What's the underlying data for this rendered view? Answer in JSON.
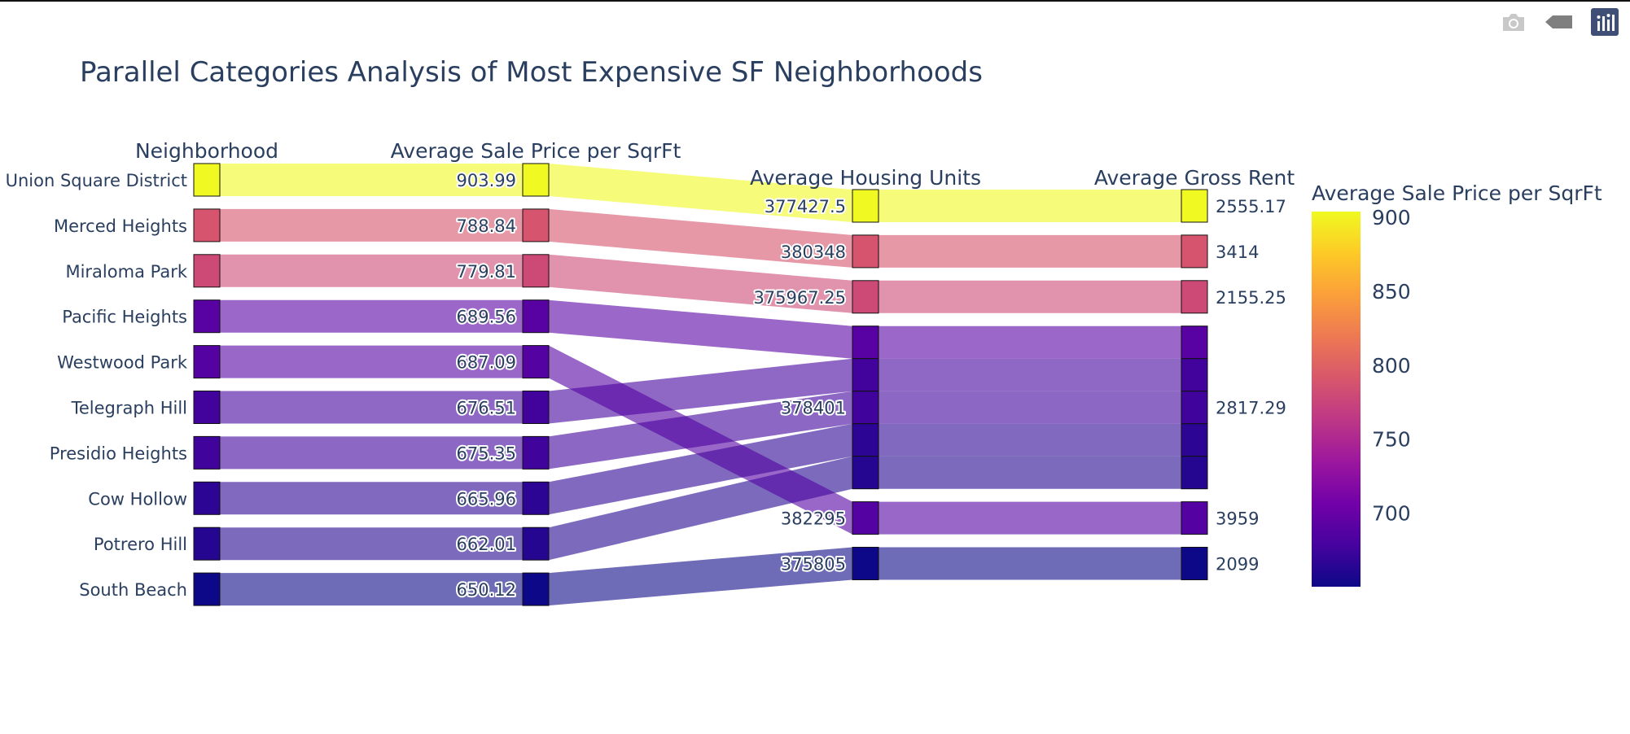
{
  "toolbar": {
    "buttons": [
      {
        "name": "camera-icon",
        "label": "Download plot as a png"
      },
      {
        "name": "tag-icon",
        "label": "Hover mode"
      },
      {
        "name": "plotly-logo-icon",
        "label": "Produced with Plotly"
      }
    ]
  },
  "chart_data": {
    "type": "parallel_categories",
    "title": "Parallel Categories Analysis of Most Expensive SF Neighborhoods",
    "dimensions": [
      {
        "label": "Neighborhood",
        "categories": [
          "Union Square District",
          "Merced Heights",
          "Miraloma Park",
          "Pacific Heights",
          "Westwood Park",
          "Telegraph Hill",
          "Presidio Heights",
          "Cow Hollow",
          "Potrero Hill",
          "South Beach"
        ]
      },
      {
        "label": "Average Sale Price per SqrFt",
        "categories": [
          "903.99",
          "788.84",
          "779.81",
          "689.56",
          "687.09",
          "676.51",
          "675.35",
          "665.96",
          "662.01",
          "650.12"
        ]
      },
      {
        "label": "Average Housing Units",
        "categories": [
          "377427.5",
          "380348",
          "375967.25",
          "378401",
          "382295",
          "375805"
        ]
      },
      {
        "label": "Average Gross Rent",
        "categories": [
          "2555.17",
          "3414",
          "2155.25",
          "2817.29",
          "3959",
          "2099"
        ]
      }
    ],
    "records": [
      {
        "neighborhood": "Union Square District",
        "sale_price_sqft": 903.99,
        "housing_units": "377427.5",
        "gross_rent": "2555.17"
      },
      {
        "neighborhood": "Merced Heights",
        "sale_price_sqft": 788.84,
        "housing_units": "380348",
        "gross_rent": "3414"
      },
      {
        "neighborhood": "Miraloma Park",
        "sale_price_sqft": 779.81,
        "housing_units": "375967.25",
        "gross_rent": "2155.25"
      },
      {
        "neighborhood": "Pacific Heights",
        "sale_price_sqft": 689.56,
        "housing_units": "378401",
        "gross_rent": "2817.29"
      },
      {
        "neighborhood": "Westwood Park",
        "sale_price_sqft": 687.09,
        "housing_units": "382295",
        "gross_rent": "3959"
      },
      {
        "neighborhood": "Telegraph Hill",
        "sale_price_sqft": 676.51,
        "housing_units": "378401",
        "gross_rent": "2817.29"
      },
      {
        "neighborhood": "Presidio Heights",
        "sale_price_sqft": 675.35,
        "housing_units": "378401",
        "gross_rent": "2817.29"
      },
      {
        "neighborhood": "Cow Hollow",
        "sale_price_sqft": 665.96,
        "housing_units": "378401",
        "gross_rent": "2817.29"
      },
      {
        "neighborhood": "Potrero Hill",
        "sale_price_sqft": 662.01,
        "housing_units": "378401",
        "gross_rent": "2817.29"
      },
      {
        "neighborhood": "South Beach",
        "sale_price_sqft": 650.12,
        "housing_units": "375805",
        "gross_rent": "2099"
      }
    ],
    "colorbar": {
      "title": "Average Sale Price per SqrFt",
      "range": [
        650.12,
        903.99
      ],
      "tickvals": [
        700,
        750,
        800,
        850,
        900
      ],
      "ticklabels": [
        "700",
        "750",
        "800",
        "850",
        "900"
      ],
      "colorscale": "plasma",
      "colors": [
        "#0d0887",
        "#46039f",
        "#7201a8",
        "#9c179e",
        "#bd3786",
        "#d8576b",
        "#ed7953",
        "#fb9f3a",
        "#fdca26",
        "#f0f921"
      ]
    },
    "text_color": "#2a3f5f",
    "ribbon_opacity": 0.6
  }
}
